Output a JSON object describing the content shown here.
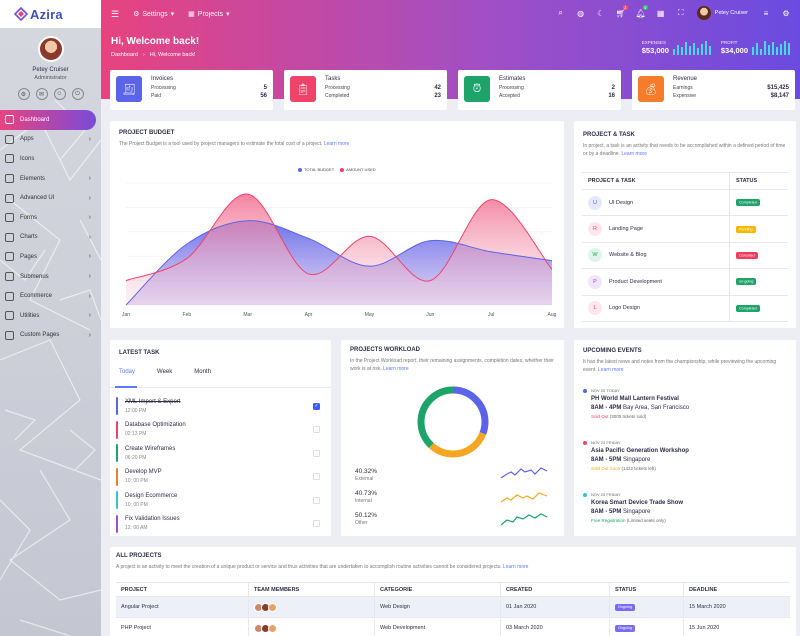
{
  "app": {
    "name": "Azira"
  },
  "sidebar": {
    "user_name": "Petey Cruiser",
    "user_role": "Administrator",
    "items": [
      {
        "label": "Dashboard",
        "active": true,
        "chevron": false
      },
      {
        "label": "Apps",
        "chevron": true
      },
      {
        "label": "Icons",
        "chevron": false
      },
      {
        "label": "Elements",
        "chevron": true
      },
      {
        "label": "Advanced UI",
        "chevron": true
      },
      {
        "label": "Forms",
        "chevron": true
      },
      {
        "label": "Charts",
        "chevron": true
      },
      {
        "label": "Pages",
        "chevron": true
      },
      {
        "label": "Submenus",
        "chevron": true
      },
      {
        "label": "Ecommerce",
        "chevron": true
      },
      {
        "label": "Utilities",
        "chevron": true
      },
      {
        "label": "Custom Pages",
        "chevron": true
      }
    ]
  },
  "topnav": {
    "settings_label": "Settings",
    "projects_label": "Projects",
    "cart_count": "3",
    "notif_count": "5",
    "user_name": "Petey Cruiser"
  },
  "header": {
    "greeting": "Hi, Welcome back!",
    "crumb_root": "Dashboard",
    "crumb_current": "Hi, Welcome back!",
    "expenses_label": "EXPENSES",
    "expenses_value": "$53,000",
    "profit_label": "PROFIT",
    "profit_value": "$34,000"
  },
  "stats": [
    {
      "title": "Invoices",
      "r1_label": "Processing",
      "r1_value": "5",
      "r2_label": "Paid",
      "r2_value": "56",
      "color": "#5b63e8",
      "icon": "invoice-icon"
    },
    {
      "title": "Tasks",
      "r1_label": "Processing",
      "r1_value": "42",
      "r2_label": "Completed",
      "r2_value": "23",
      "color": "#f0436a",
      "icon": "clipboard-icon"
    },
    {
      "title": "Estimates",
      "r1_label": "Processing",
      "r1_value": "2",
      "r2_label": "Accepted",
      "r2_value": "16",
      "color": "#1ea36b",
      "icon": "alarm-icon"
    },
    {
      "title": "Revenue",
      "r1_label": "Earnings",
      "r1_value": "$15,425",
      "r2_label": "Expensive",
      "r2_value": "$8,147",
      "color": "#f57c2b",
      "icon": "money-bag-icon"
    }
  ],
  "budget": {
    "title": "PROJECT BUDGET",
    "desc": "The Project Budget is a tool used by project managers to estimate the total cost of a project.",
    "link": "Learn more",
    "legend_total": "TOTAL BUDGET",
    "legend_amount": "AMOUNT USED"
  },
  "chart_data": {
    "type": "area",
    "categories": [
      "Jan",
      "Feb",
      "Mar",
      "Apr",
      "May",
      "Jun",
      "Jul",
      "Aug"
    ],
    "series": [
      {
        "name": "TOTAL BUDGET",
        "values": [
          0,
          55,
          76,
          60,
          35,
          58,
          48,
          40
        ],
        "color": "#5b63e8"
      },
      {
        "name": "AMOUNT USED",
        "values": [
          22,
          42,
          100,
          28,
          62,
          22,
          95,
          32
        ],
        "color": "#f0436a"
      }
    ],
    "ylim": [
      0,
      110
    ]
  },
  "ptask": {
    "title": "PROJECT & TASK",
    "desc": "In project, a task is an activity that needs to be accomplished within a defined period of time or by a deadline.",
    "link": "Learn more",
    "col1": "PROJECT & TASK",
    "col2": "STATUS",
    "rows": [
      {
        "initial": "U",
        "name": "UI Design",
        "status": "Completed",
        "bg": "#e5e8ff",
        "fg": "#5b63e8",
        "scolor": "#1ea36b"
      },
      {
        "initial": "R",
        "name": "Landing Page",
        "status": "Pending",
        "bg": "#fde7ec",
        "fg": "#f0436a",
        "scolor": "#f5b800"
      },
      {
        "initial": "W",
        "name": "Website & Blog",
        "status": "Canceled",
        "bg": "#dff5ea",
        "fg": "#1ea36b",
        "scolor": "#ef3b5c"
      },
      {
        "initial": "P",
        "name": "Product Development",
        "status": "on-going",
        "bg": "#f1e6fb",
        "fg": "#a14fc5",
        "scolor": "#1ea36b"
      },
      {
        "initial": "L",
        "name": "Logo Design",
        "status": "Completed",
        "bg": "#fde7ec",
        "fg": "#f0436a",
        "scolor": "#1ea36b"
      }
    ]
  },
  "latest": {
    "title": "LATEST TASK",
    "tabs": [
      "Today",
      "Week",
      "Month"
    ],
    "tasks": [
      {
        "name": "XML Import & Export",
        "time": "12:00 PM",
        "color": "#5b63e8",
        "done": true
      },
      {
        "name": "Database Optimization",
        "time": "02:13 PM",
        "color": "#f0436a",
        "done": false
      },
      {
        "name": "Create Wireframes",
        "time": "06:20 PM",
        "color": "#1ea36b",
        "done": false
      },
      {
        "name": "Develop MVP",
        "time": "10: 00 PM",
        "color": "#f57c2b",
        "done": false
      },
      {
        "name": "Design Ecommerce",
        "time": "10: 00 PM",
        "color": "#2ec5d9",
        "done": false
      },
      {
        "name": "Fix Validation Issues",
        "time": "12: 00 AM",
        "color": "#a14fc5",
        "done": false
      }
    ]
  },
  "workload": {
    "title": "PROJECTS WORKLOAD",
    "desc": "In the Project Workload report, their remaining assignments, completion dates, whether their work is at risk.",
    "link": "Learn more",
    "segments": [
      {
        "label": "External",
        "pct": "40.32%",
        "value": 40.32,
        "color": "#5b63e8"
      },
      {
        "label": "Internal",
        "pct": "40.73%",
        "value": 40.73,
        "color": "#f5a623"
      },
      {
        "label": "Other",
        "pct": "50.12%",
        "value": 50.12,
        "color": "#1ea36b"
      }
    ]
  },
  "upcoming": {
    "title": "UPCOMING EVENTS",
    "desc": "It has the latest news and notes from the championship, while previewing the upcoming event.",
    "link": "Learn more",
    "events": [
      {
        "date": "NOV 20 TODAY",
        "name": "PH World Mall Lantern Festival",
        "time": "8AM - 4PM",
        "place": "Bay Area, San Francisco",
        "status": "Sold Out",
        "status_color": "#f0436a",
        "extra": "(3000 tickets sold)",
        "dot": "#5b63e8"
      },
      {
        "date": "NOV 23 FRIDAY",
        "name": "Asia Pacific Generation Workshop",
        "time": "8AM - 5PM",
        "place": "Singapore",
        "status": "Sold Out Soon",
        "status_color": "#f5a623",
        "extra": "(1422 tickets left)",
        "dot": "#f0436a"
      },
      {
        "date": "NOV 25 FRIDAY",
        "name": "Korea Smart Device Trade Show",
        "time": "8AM - 5PM",
        "place": "Singapore",
        "status": "Free Registration",
        "status_color": "#1ea36b",
        "extra": "(Limited seats only)",
        "dot": "#2ec5d9"
      }
    ]
  },
  "allproj": {
    "title": "ALL PROJECTS",
    "desc": "A project is an activity to meet the creation of a unique product or service and thus activities that are undertaken to accomplish routine activities cannot be considered projects.",
    "link": "Learn more",
    "columns": [
      "PROJECT",
      "TEAM MEMBERS",
      "CATEGORIE",
      "CREATED",
      "STATUS",
      "DEADLINE"
    ],
    "rows": [
      {
        "project": "Angular Project",
        "category": "Web Design",
        "created": "01 Jan 2020",
        "status": "Ongoing",
        "deadline": "15 March 2020"
      },
      {
        "project": "PHP Project",
        "category": "Web Development",
        "created": "03 March 2020",
        "status": "Ongoing",
        "deadline": "15 Jun 2020"
      }
    ]
  }
}
